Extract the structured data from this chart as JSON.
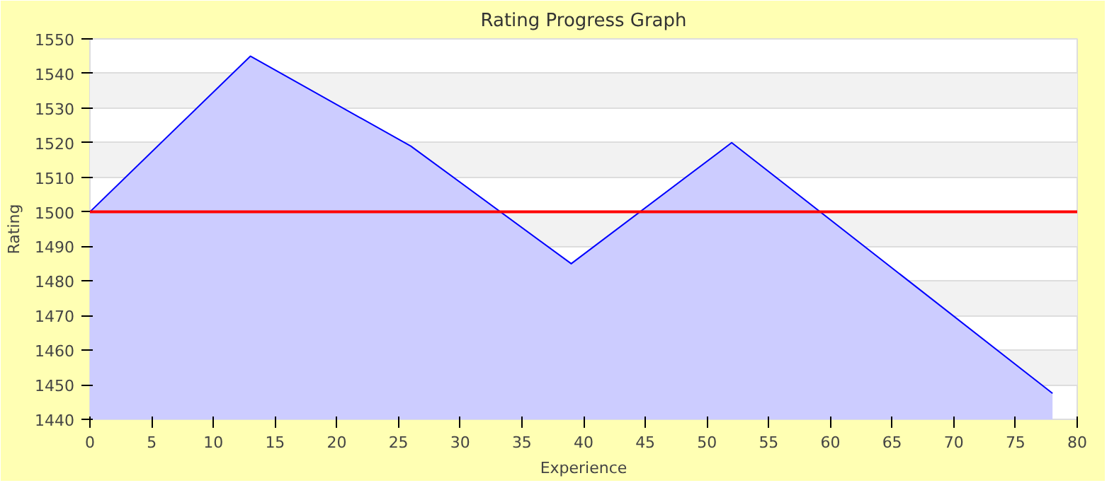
{
  "chart_data": {
    "type": "area",
    "title": "Rating Progress Graph",
    "xlabel": "Experience",
    "ylabel": "Rating",
    "x": [
      0,
      13,
      26,
      39,
      52,
      78
    ],
    "series": [
      {
        "color": "#0000ff",
        "values": [
          1500,
          1545,
          1519,
          1485,
          1520,
          1447.5
        ]
      }
    ],
    "xlim": [
      0,
      80
    ],
    "xticks": [
      0,
      5,
      10,
      15,
      20,
      25,
      30,
      35,
      40,
      45,
      50,
      55,
      60,
      65,
      70,
      75,
      80
    ],
    "ylim": [
      1440,
      1550
    ],
    "yticks": [
      1440,
      1450,
      1460,
      1470,
      1480,
      1490,
      1500,
      1510,
      1520,
      1530,
      1540,
      1550
    ],
    "ref_lines": [
      {
        "axis": "y",
        "value": 1500,
        "color": "#ff0000"
      }
    ],
    "grid": "y"
  }
}
